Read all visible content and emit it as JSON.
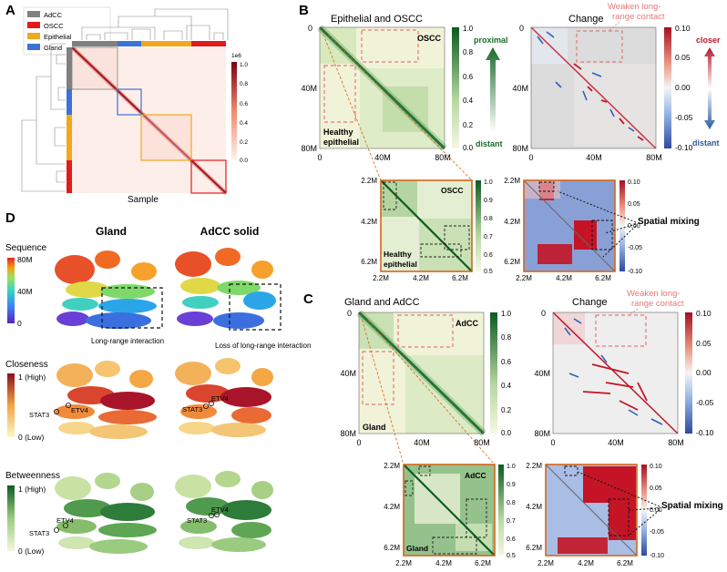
{
  "panel_letters": {
    "a": "A",
    "b": "B",
    "c": "C",
    "d": "D"
  },
  "panel_a": {
    "legend": [
      "AdCC",
      "OSCC",
      "Epithelial",
      "Gland"
    ],
    "legend_colors": [
      "#808080",
      "#e31a1c",
      "#f0a81e",
      "#3b73d6"
    ],
    "xlabel": "Sample",
    "colorbar_exponent": "1e6",
    "colorbar_ticks": [
      "1.0",
      "0.8",
      "0.6",
      "0.4",
      "0.2",
      "0.0"
    ]
  },
  "panel_b": {
    "title_left": "Epithelial and OSCC",
    "title_right": "Change",
    "axis_ticks": [
      "0",
      "40M",
      "80M"
    ],
    "x_ticks": [
      "0",
      "40M",
      "80M"
    ],
    "label_oscc": "OSCC",
    "label_healthy_1": "Healthy",
    "label_healthy_2": "epithelial",
    "cbar_green_ticks": [
      "1.0",
      "0.8",
      "0.6",
      "0.4",
      "0.2",
      "0.0"
    ],
    "proximal": "proximal",
    "distant": "distant",
    "cbar_change_ticks": [
      "0.10",
      "0.05",
      "0.00",
      "-0.05",
      "-0.10"
    ],
    "closer": "closer",
    "distant_right": "distant",
    "weaken_1": "Weaken long-",
    "weaken_2": "range contact",
    "zoom_ticks": [
      "2.2M",
      "4.2M",
      "6.2M"
    ],
    "zoom_cbar_ticks": [
      "1.0",
      "0.9",
      "0.8",
      "0.7",
      "0.6",
      "0.5"
    ],
    "zoom_change_ticks": [
      "0.10",
      "0.05",
      "0.00",
      "-0.05",
      "-0.10"
    ],
    "zoom_oscc": "OSCC",
    "zoom_healthy_1": "Healthy",
    "zoom_healthy_2": "epithelial",
    "spatial_mixing": "Spatial mixing"
  },
  "panel_c": {
    "title_left": "Gland and AdCC",
    "title_right": "Change",
    "axis_ticks": [
      "0",
      "40M",
      "80M"
    ],
    "x_ticks": [
      "0",
      "40M",
      "80M"
    ],
    "label_adcc": "AdCC",
    "label_gland": "Gland",
    "cbar_green_ticks": [
      "1.0",
      "0.8",
      "0.6",
      "0.4",
      "0.2",
      "0.0"
    ],
    "cbar_change_ticks": [
      "0.10",
      "0.05",
      "0.00",
      "-0.05",
      "-0.10"
    ],
    "weaken_1": "Weaken long-",
    "weaken_2": "range contact",
    "zoom_ticks": [
      "2.2M",
      "4.2M",
      "6.2M"
    ],
    "zoom_cbar_ticks": [
      "1.0",
      "0.9",
      "0.8",
      "0.7",
      "0.6",
      "0.5"
    ],
    "zoom_change_ticks": [
      "0.10",
      "0.05",
      "0.00",
      "-0.05",
      "-0.10"
    ],
    "zoom_adcc": "AdCC",
    "zoom_gland": "Gland",
    "spatial_mixing": "Spatial mixing"
  },
  "panel_d": {
    "col_gland": "Gland",
    "col_adcc": "AdCC solid",
    "sequence": {
      "title": "Sequence",
      "ticks": [
        "80M",
        "40M",
        "0"
      ]
    },
    "long_range": "Long-range interaction",
    "loss_long_range": "Loss of long-range interaction",
    "closeness": {
      "title": "Closeness",
      "high": "1 (High)",
      "low": "0 (Low)"
    },
    "betweenness": {
      "title": "Betweenness",
      "high": "1 (High)",
      "low": "0 (Low)"
    },
    "gene_stat3": "STAT3",
    "gene_etv4": "ETV4"
  },
  "colors": {
    "green_dark": "#1b6b2a",
    "green_light": "#f3f5dc",
    "red": "#b2182b",
    "blue": "#2c5aa0",
    "orange_frame": "#d4661c",
    "pink_dash": "#e87777"
  }
}
